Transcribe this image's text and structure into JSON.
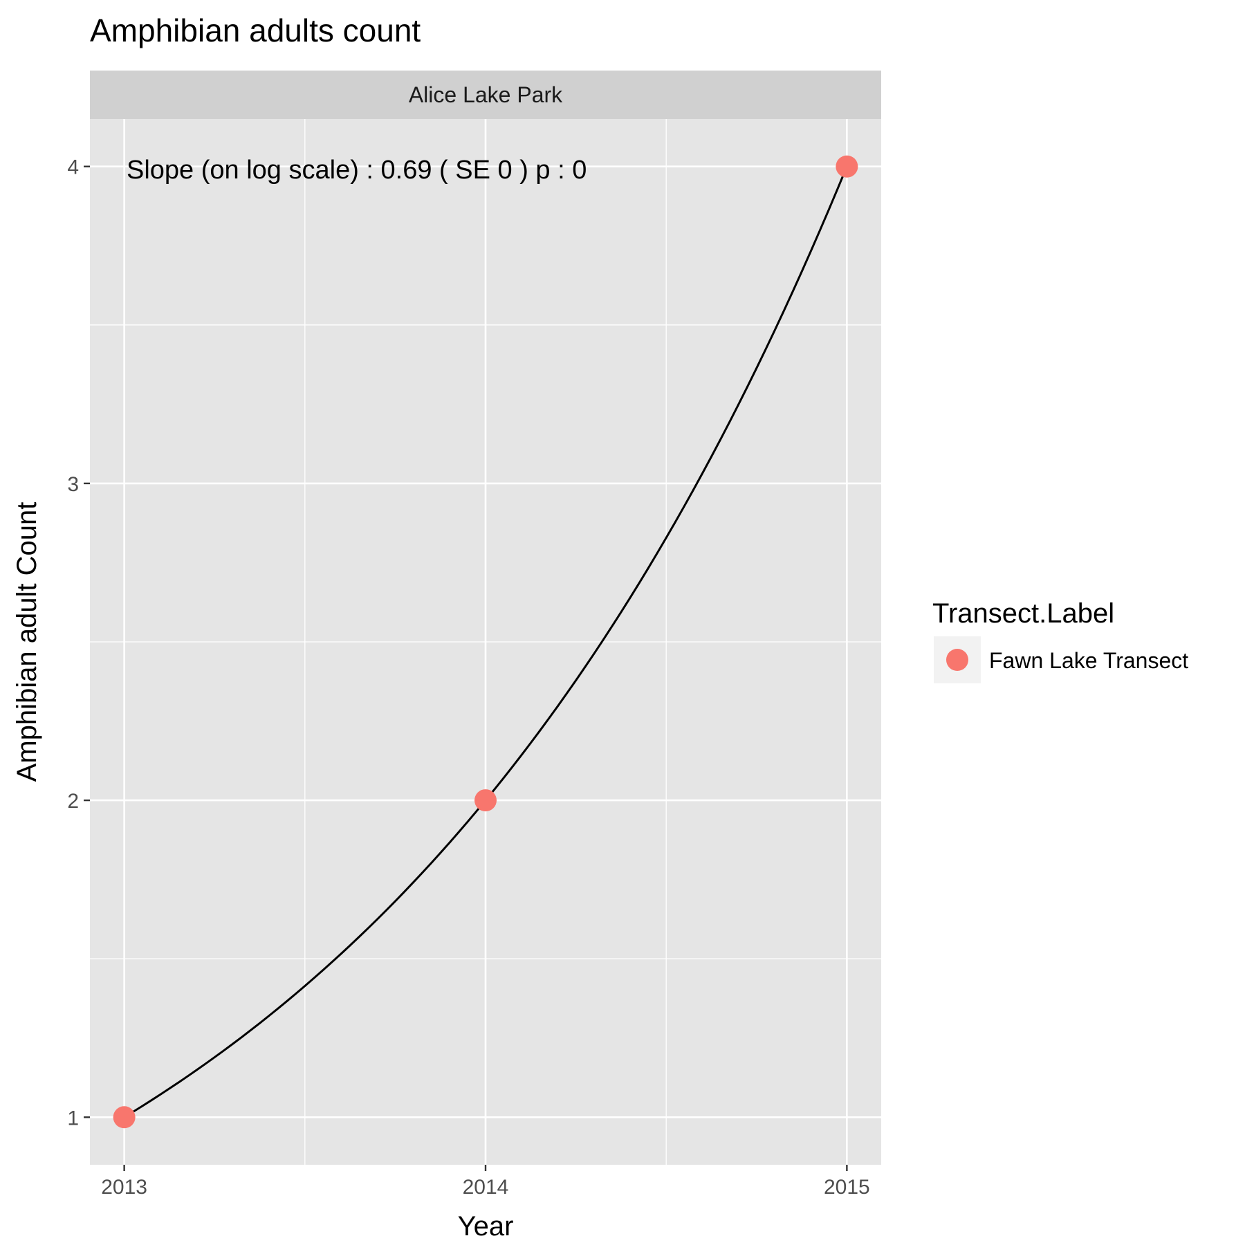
{
  "chart_data": {
    "type": "scatter",
    "title": "Amphibian adults count",
    "facet_label": "Alice Lake Park",
    "xlabel": "Year",
    "ylabel": "Amphibian adult Count",
    "x_ticks": [
      2013,
      2014,
      2015
    ],
    "y_ticks": [
      1,
      2,
      3,
      4
    ],
    "xlim": [
      2012.905,
      2015.095
    ],
    "ylim": [
      0.85,
      4.15
    ],
    "grid": true,
    "annotation": "Slope (on log scale) :  0.69  ( SE  0 )  p : 0",
    "series": [
      {
        "name": "Fawn Lake Transect",
        "color": "#F8766D",
        "x": [
          2013,
          2014,
          2015
        ],
        "y": [
          1,
          2,
          4
        ]
      }
    ],
    "fit_line": {
      "type": "exponential",
      "color": "#000000",
      "intercept_at_2013": 1,
      "growth_per_year": 2
    },
    "legend": {
      "title": "Transect.Label",
      "position": "right",
      "entries": [
        "Fawn Lake Transect"
      ]
    },
    "colors": {
      "panel_background": "#E5E5E5",
      "strip_background": "#D0D0D0",
      "grid": "#FFFFFF",
      "point": "#F8766D"
    }
  }
}
